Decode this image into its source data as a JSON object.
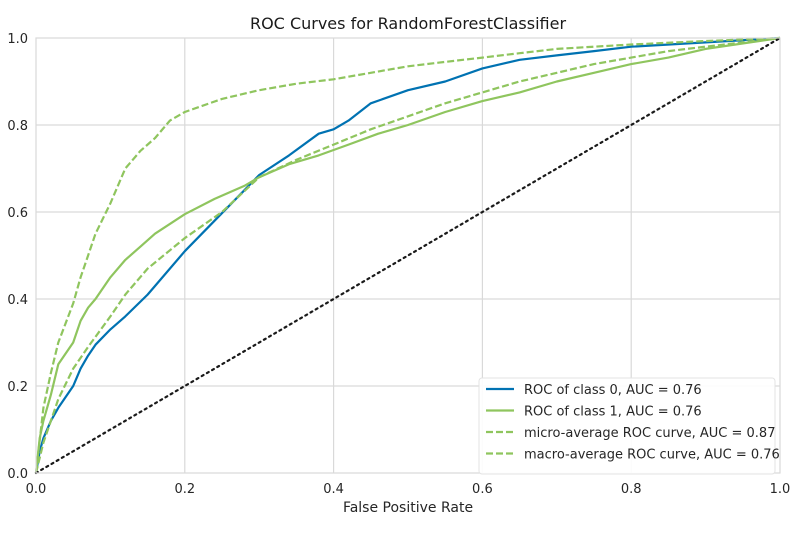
{
  "chart_data": {
    "type": "line",
    "title": "ROC Curves for RandomForestClassifier",
    "xlabel": "False Positive Rate",
    "ylabel": "",
    "xlim": [
      0,
      1
    ],
    "ylim": [
      0,
      1
    ],
    "x_ticks": [
      "0.0",
      "0.2",
      "0.4",
      "0.6",
      "0.8",
      "1.0"
    ],
    "y_ticks": [
      "0.0",
      "0.2",
      "0.4",
      "0.6",
      "0.8",
      "1.0"
    ],
    "grid": true,
    "legend_position": "bottom-right",
    "series": [
      {
        "name": "ROC of class 0, AUC = 0.76",
        "color": "#0072b2",
        "style": "solid",
        "points": [
          [
            0,
            0
          ],
          [
            0.005,
            0.05
          ],
          [
            0.01,
            0.08
          ],
          [
            0.02,
            0.12
          ],
          [
            0.03,
            0.15
          ],
          [
            0.05,
            0.2
          ],
          [
            0.06,
            0.24
          ],
          [
            0.07,
            0.27
          ],
          [
            0.08,
            0.295
          ],
          [
            0.1,
            0.33
          ],
          [
            0.12,
            0.36
          ],
          [
            0.15,
            0.41
          ],
          [
            0.16,
            0.43
          ],
          [
            0.2,
            0.51
          ],
          [
            0.24,
            0.58
          ],
          [
            0.28,
            0.65
          ],
          [
            0.3,
            0.685
          ],
          [
            0.34,
            0.73
          ],
          [
            0.38,
            0.78
          ],
          [
            0.4,
            0.79
          ],
          [
            0.42,
            0.81
          ],
          [
            0.45,
            0.85
          ],
          [
            0.5,
            0.88
          ],
          [
            0.55,
            0.9
          ],
          [
            0.6,
            0.93
          ],
          [
            0.65,
            0.95
          ],
          [
            0.7,
            0.96
          ],
          [
            0.75,
            0.97
          ],
          [
            0.8,
            0.98
          ],
          [
            0.9,
            0.99
          ],
          [
            1,
            1
          ]
        ]
      },
      {
        "name": "ROC of class 1, AUC = 0.76",
        "color": "#8fc55e",
        "style": "solid",
        "points": [
          [
            0,
            0
          ],
          [
            0.005,
            0.08
          ],
          [
            0.01,
            0.12
          ],
          [
            0.02,
            0.18
          ],
          [
            0.03,
            0.25
          ],
          [
            0.05,
            0.3
          ],
          [
            0.06,
            0.35
          ],
          [
            0.07,
            0.38
          ],
          [
            0.08,
            0.4
          ],
          [
            0.1,
            0.45
          ],
          [
            0.12,
            0.49
          ],
          [
            0.14,
            0.52
          ],
          [
            0.16,
            0.55
          ],
          [
            0.2,
            0.595
          ],
          [
            0.24,
            0.63
          ],
          [
            0.28,
            0.66
          ],
          [
            0.3,
            0.68
          ],
          [
            0.34,
            0.71
          ],
          [
            0.38,
            0.73
          ],
          [
            0.42,
            0.755
          ],
          [
            0.46,
            0.78
          ],
          [
            0.5,
            0.8
          ],
          [
            0.55,
            0.83
          ],
          [
            0.6,
            0.855
          ],
          [
            0.65,
            0.875
          ],
          [
            0.7,
            0.9
          ],
          [
            0.75,
            0.92
          ],
          [
            0.8,
            0.94
          ],
          [
            0.85,
            0.955
          ],
          [
            0.9,
            0.975
          ],
          [
            1,
            1
          ]
        ]
      },
      {
        "name": "micro-average ROC curve, AUC = 0.87",
        "color": "#8fc55e",
        "style": "dashed",
        "points": [
          [
            0,
            0
          ],
          [
            0.01,
            0.15
          ],
          [
            0.02,
            0.23
          ],
          [
            0.03,
            0.3
          ],
          [
            0.05,
            0.39
          ],
          [
            0.06,
            0.45
          ],
          [
            0.07,
            0.5
          ],
          [
            0.08,
            0.55
          ],
          [
            0.1,
            0.62
          ],
          [
            0.12,
            0.7
          ],
          [
            0.14,
            0.74
          ],
          [
            0.16,
            0.77
          ],
          [
            0.18,
            0.81
          ],
          [
            0.2,
            0.83
          ],
          [
            0.25,
            0.86
          ],
          [
            0.3,
            0.88
          ],
          [
            0.35,
            0.895
          ],
          [
            0.4,
            0.905
          ],
          [
            0.45,
            0.92
          ],
          [
            0.5,
            0.935
          ],
          [
            0.55,
            0.945
          ],
          [
            0.6,
            0.955
          ],
          [
            0.65,
            0.965
          ],
          [
            0.7,
            0.975
          ],
          [
            0.8,
            0.985
          ],
          [
            0.9,
            0.993
          ],
          [
            1,
            1
          ]
        ]
      },
      {
        "name": "macro-average ROC curve, AUC = 0.76",
        "color": "#8fc55e",
        "style": "dashed",
        "points": [
          [
            0,
            0
          ],
          [
            0.01,
            0.07
          ],
          [
            0.02,
            0.12
          ],
          [
            0.03,
            0.17
          ],
          [
            0.05,
            0.24
          ],
          [
            0.07,
            0.29
          ],
          [
            0.1,
            0.36
          ],
          [
            0.12,
            0.41
          ],
          [
            0.15,
            0.47
          ],
          [
            0.2,
            0.54
          ],
          [
            0.25,
            0.6
          ],
          [
            0.3,
            0.68
          ],
          [
            0.35,
            0.72
          ],
          [
            0.4,
            0.755
          ],
          [
            0.45,
            0.79
          ],
          [
            0.5,
            0.82
          ],
          [
            0.55,
            0.85
          ],
          [
            0.6,
            0.875
          ],
          [
            0.65,
            0.9
          ],
          [
            0.7,
            0.92
          ],
          [
            0.75,
            0.94
          ],
          [
            0.8,
            0.955
          ],
          [
            0.85,
            0.97
          ],
          [
            0.9,
            0.98
          ],
          [
            0.95,
            0.99
          ],
          [
            1,
            1
          ]
        ]
      },
      {
        "name": "",
        "color": "#1a1a1a",
        "style": "dotted",
        "points": [
          [
            0,
            0
          ],
          [
            1,
            1
          ]
        ]
      }
    ]
  }
}
